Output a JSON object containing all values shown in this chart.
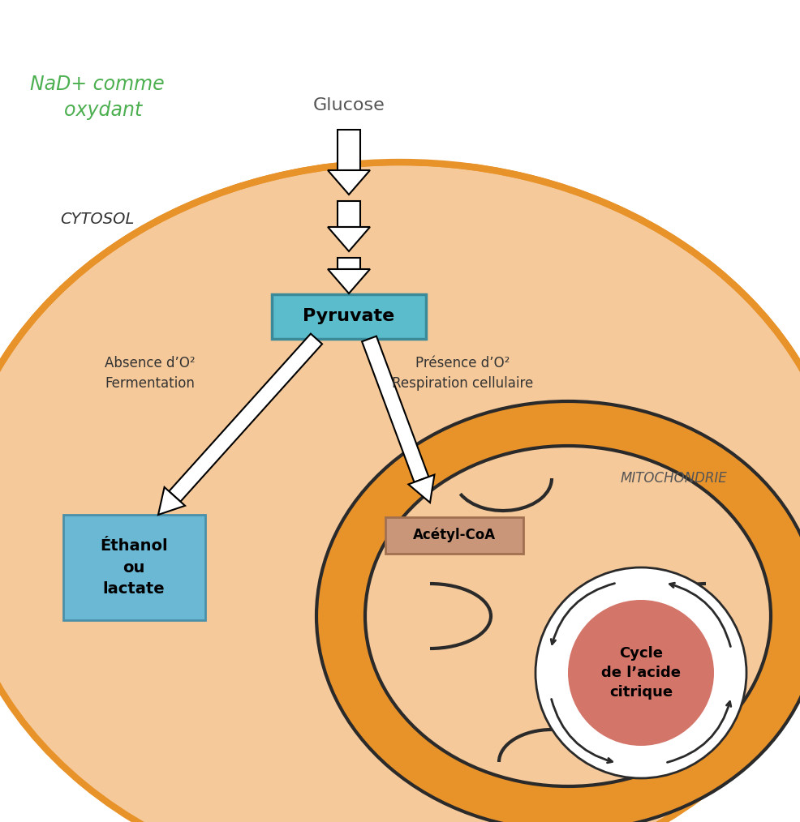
{
  "bg_color": "#ffffff",
  "cytosol_fill": "#f5c99a",
  "cytosol_border": "#e8922a",
  "mito_outer_fill": "#e8922a",
  "mito_inner_fill": "#f5c99a",
  "mito_matrix_fill": "#f5c99a",
  "pyruvate_box_fill": "#5bbccc",
  "pyruvate_box_edge": "#3a8a99",
  "pyruvate_text": "Pyruvate",
  "ethanol_box_fill": "#6ab8d4",
  "ethanol_box_edge": "#4a90a8",
  "ethanol_text": "Éthanol\nou\nlactate",
  "acetyl_box_fill": "#c9967a",
  "acetyl_box_edge": "#a07050",
  "acetyl_text": "Acétyl-CoA",
  "cycle_fill": "#d4756a",
  "cycle_text": "Cycle\nde l’acide\ncitrique",
  "glucose_label": "Glucose",
  "cytosol_label": "CYTOSOL",
  "mito_label": "MITOCHONDRIE",
  "absence_label": "Absence d’O²\nFermentation",
  "presence_label": "Présence d’O²\nRespiration cellulaire",
  "handwriting_text": "NaD+ comme\n  oxydant",
  "handwriting_color": "#4caf50",
  "arrow_color": "#ffffff",
  "arrow_edge_color": "#000000"
}
